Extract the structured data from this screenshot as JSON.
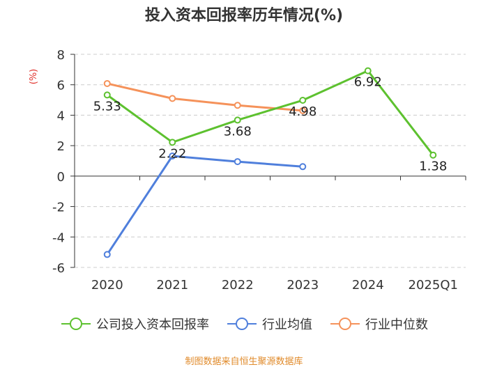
{
  "chart_data": {
    "type": "line",
    "title": "投入资本回报率历年情况(%)",
    "ylabel": "(%)",
    "xlabel": "",
    "categories": [
      "2020",
      "2021",
      "2022",
      "2023",
      "2024",
      "2025Q1"
    ],
    "ylim": [
      -6,
      8
    ],
    "yticks": [
      8,
      6,
      4,
      2,
      0,
      -2,
      -4,
      -6
    ],
    "grid": true,
    "legend_position": "bottom",
    "series": [
      {
        "name": "公司投入资本回报率",
        "color": "#5dc12f",
        "values": [
          5.33,
          2.22,
          3.68,
          4.98,
          6.92,
          1.38
        ],
        "labels": [
          "5.33",
          "2.22",
          "3.68",
          "4.98",
          "6.92",
          "1.38"
        ]
      },
      {
        "name": "行业均值",
        "color": "#4f7fdc",
        "values": [
          -5.15,
          1.32,
          0.95,
          0.62,
          null,
          null
        ]
      },
      {
        "name": "行业中位数",
        "color": "#f5925a",
        "values": [
          6.08,
          5.1,
          4.65,
          4.3,
          null,
          null
        ]
      }
    ]
  },
  "source": "制图数据来自恒生聚源数据库",
  "ylabel_color": "#e0302a"
}
